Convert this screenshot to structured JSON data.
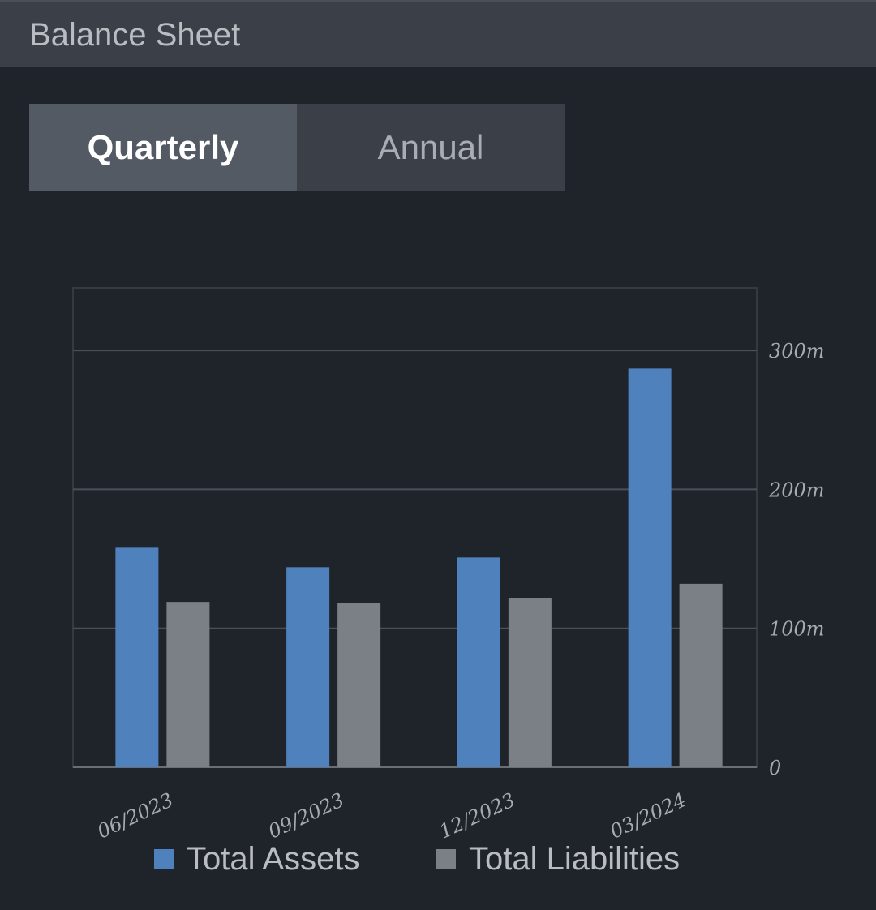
{
  "header": {
    "title": "Balance Sheet"
  },
  "tabs": [
    {
      "label": "Quarterly",
      "active": true
    },
    {
      "label": "Annual",
      "active": false
    }
  ],
  "colors": {
    "assets": "#4f81bd",
    "liabilities": "#7b8087",
    "gridline": "#4b5058",
    "axis": "#6a6f76"
  },
  "chart_data": {
    "type": "bar",
    "categories": [
      "06/2023",
      "09/2023",
      "12/2023",
      "03/2024"
    ],
    "series": [
      {
        "name": "Total Assets",
        "values": [
          158,
          144,
          151,
          287
        ]
      },
      {
        "name": "Total Liabilities",
        "values": [
          119,
          118,
          122,
          132
        ]
      }
    ],
    "yticks": [
      {
        "value": 0,
        "label": "0"
      },
      {
        "value": 100,
        "label": "100m"
      },
      {
        "value": 200,
        "label": "200m"
      },
      {
        "value": 300,
        "label": "300m"
      }
    ],
    "ylim": [
      0,
      345
    ],
    "grid": true,
    "legend": "bottom"
  }
}
